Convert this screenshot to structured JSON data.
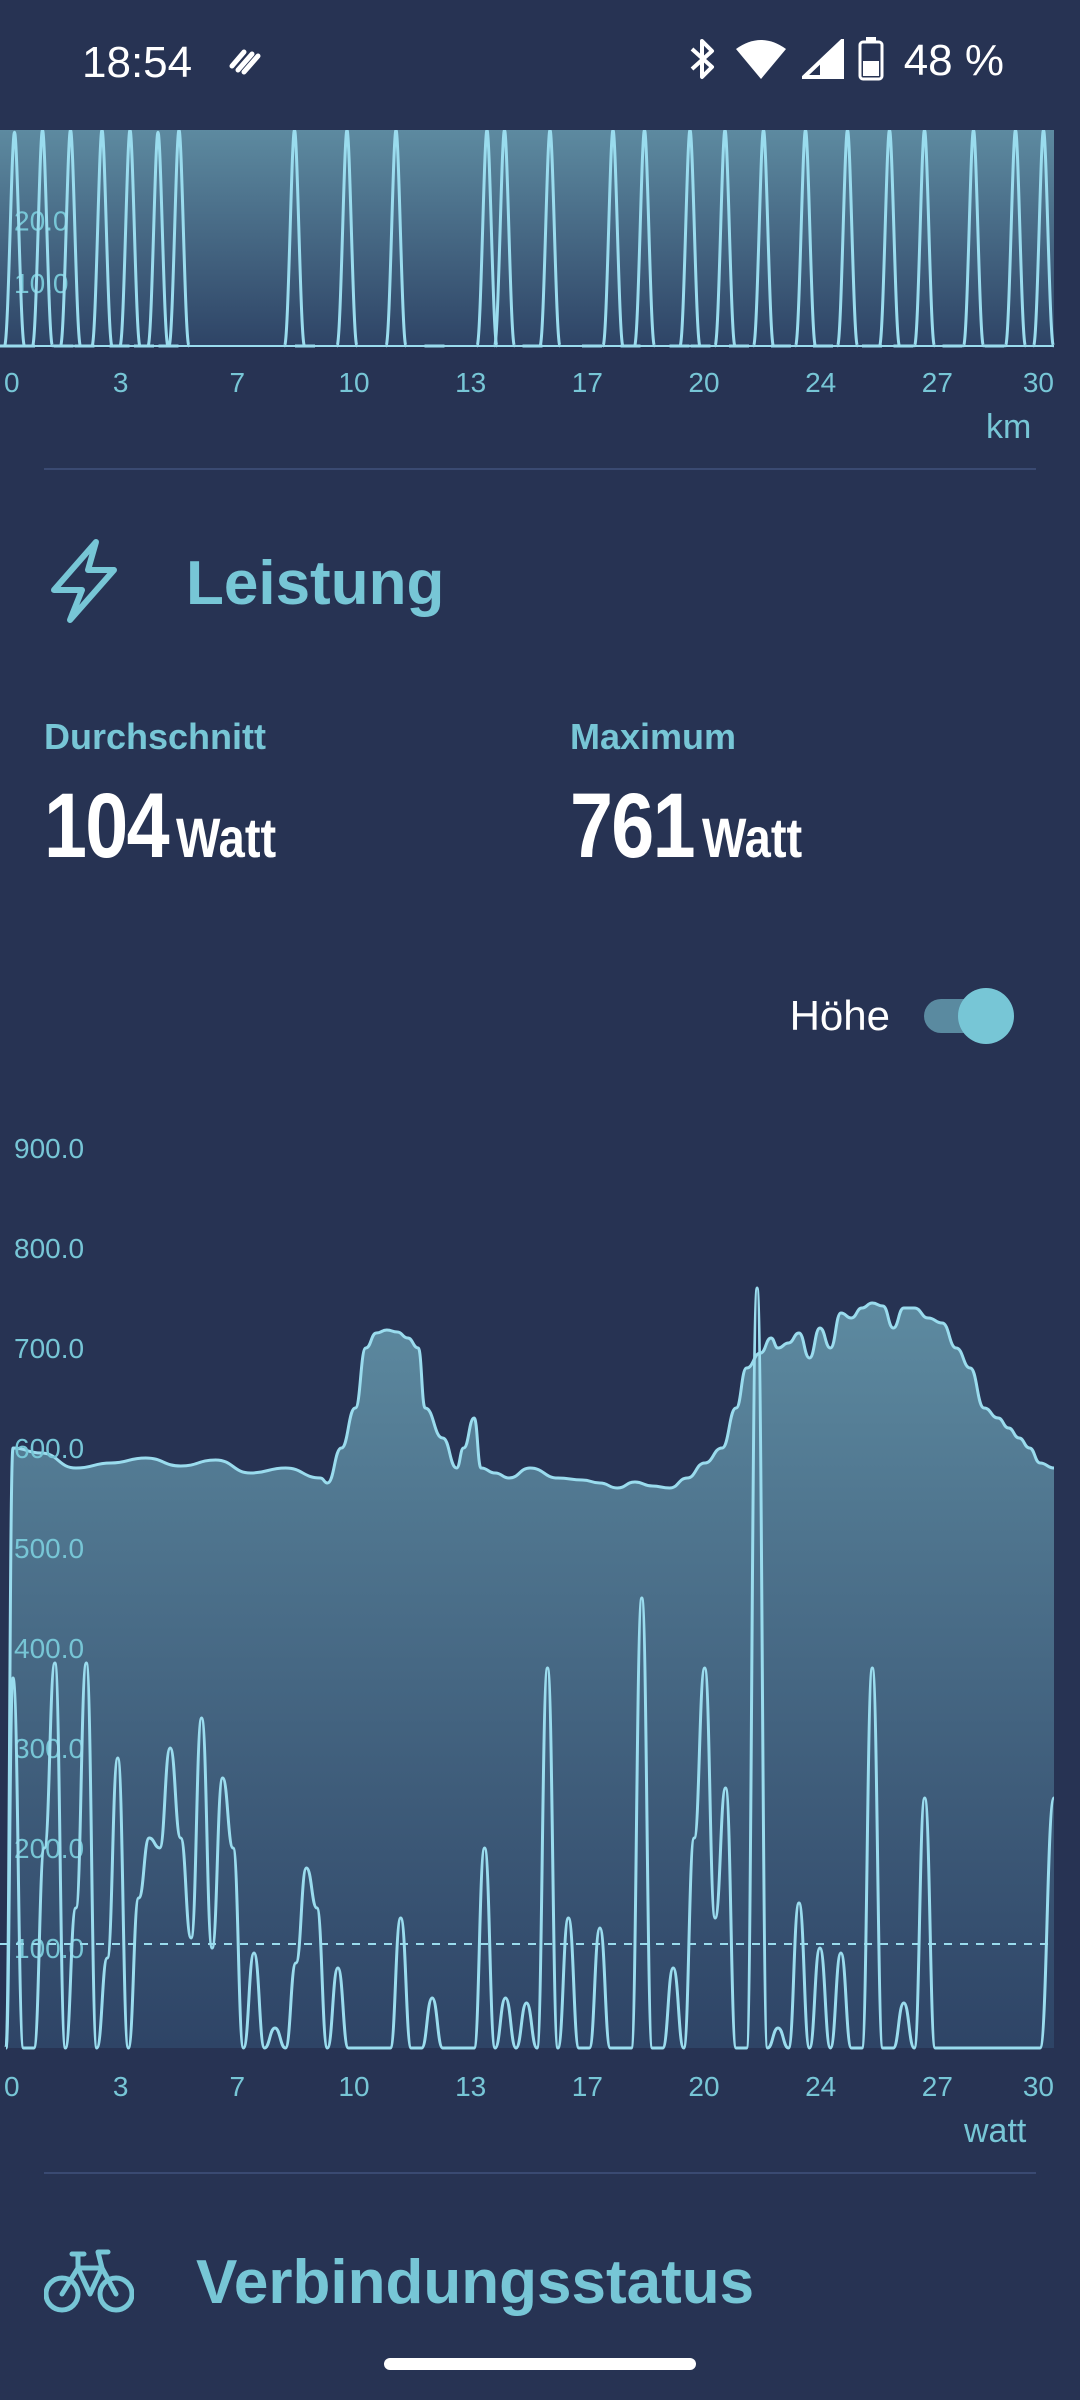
{
  "status_bar": {
    "time": "18:54",
    "battery_text": "48 %",
    "icons": [
      "notification-app-icon",
      "bluetooth-icon",
      "wifi-icon",
      "cell-signal-icon",
      "battery-icon"
    ]
  },
  "colors": {
    "background": "#273353",
    "accent": "#77c6d6",
    "line": "#9adcee",
    "fill_top": "#5d8aa0",
    "fill_bottom": "#2e4466"
  },
  "speed_section": {
    "unit": "km"
  },
  "power_section": {
    "icon": "lightning-icon",
    "title": "Leistung",
    "average": {
      "label": "Durchschnitt",
      "value": "104",
      "unit": "Watt"
    },
    "maximum": {
      "label": "Maximum",
      "value": "761",
      "unit": "Watt"
    },
    "toggle": {
      "label": "Höhe",
      "on": true
    },
    "unit": "watt"
  },
  "connection_section": {
    "icon": "bicycle-icon",
    "title": "Verbindungsstatus"
  },
  "chart_data": [
    {
      "type": "line",
      "x_ticks": [
        "0",
        "3",
        "7",
        "10",
        "13",
        "17",
        "20",
        "24",
        "27",
        "30"
      ],
      "y_ticks": [
        "10.0",
        "20.0"
      ],
      "xlabel": "km",
      "xlim": [
        0,
        30
      ],
      "series": [
        {
          "x": [
            0.1,
            0.3,
            0.6,
            1.1,
            1.7,
            1.9,
            2.3,
            2.8,
            3.3,
            3.6,
            4.0,
            4.4,
            4.7,
            5.0,
            8.3,
            8.6,
            9.8,
            11.2,
            12.3,
            13.8,
            14.3,
            15.1,
            15.6,
            16.8,
            17.4,
            17.9,
            18.3,
            19.3,
            19.6,
            19.9,
            20.6,
            21.0,
            21.7,
            22.2,
            22.9,
            23.4,
            24.1,
            24.8,
            25.3,
            25.7,
            26.3,
            27.1,
            27.7,
            28.3,
            28.9,
            29.7
          ],
          "values": [
            0,
            34,
            0,
            36,
            0,
            38,
            0,
            38,
            0,
            36,
            0,
            34,
            0,
            38,
            38,
            0,
            42,
            38,
            0,
            38,
            38,
            0,
            38,
            0,
            38,
            0,
            38,
            0,
            36,
            0,
            38,
            0,
            38,
            0,
            38,
            0,
            38,
            0,
            38,
            0,
            38,
            0,
            38,
            0,
            38,
            38
          ]
        }
      ]
    },
    {
      "type": "area",
      "x_ticks": [
        "0",
        "3",
        "7",
        "10",
        "13",
        "17",
        "20",
        "24",
        "27",
        "30"
      ],
      "y_ticks": [
        "100.0",
        "200.0",
        "300.0",
        "400.0",
        "500.0",
        "600.0",
        "700.0",
        "800.0",
        "900.0"
      ],
      "xlabel": "watt",
      "xlim": [
        0,
        30
      ],
      "ylim": [
        0,
        950
      ],
      "average_line": 104,
      "series": [
        {
          "name": "Höhe",
          "x": [
            0,
            0.2,
            1.0,
            2.0,
            3.0,
            4.0,
            5.0,
            6.0,
            7.0,
            8.0,
            9.0,
            9.2,
            9.6,
            10.0,
            10.3,
            10.6,
            10.9,
            11.2,
            11.5,
            11.8,
            12.0,
            12.5,
            12.9,
            13.1,
            13.4,
            13.6,
            14.0,
            14.4,
            15.0,
            15.8,
            16.5,
            17.0,
            17.5,
            18.0,
            18.5,
            19.0,
            19.5,
            20.0,
            20.5,
            20.9,
            21.2,
            21.6,
            21.9,
            22.1,
            22.4,
            22.7,
            23.0,
            23.3,
            23.6,
            23.9,
            24.2,
            24.5,
            24.8,
            25.1,
            25.4,
            25.7,
            26.0,
            26.4,
            26.8,
            27.2,
            27.6,
            28.0,
            28.4,
            28.7,
            29.0,
            29.3,
            29.6,
            30.0
          ],
          "values": [
            0,
            600,
            595,
            580,
            585,
            590,
            582,
            588,
            575,
            580,
            570,
            565,
            600,
            640,
            700,
            715,
            718,
            716,
            710,
            700,
            640,
            610,
            580,
            600,
            630,
            580,
            575,
            570,
            580,
            570,
            568,
            565,
            560,
            566,
            562,
            560,
            570,
            585,
            600,
            640,
            680,
            695,
            710,
            700,
            705,
            715,
            690,
            720,
            700,
            735,
            730,
            740,
            745,
            742,
            720,
            740,
            740,
            730,
            725,
            700,
            680,
            640,
            630,
            620,
            610,
            600,
            585,
            580
          ]
        },
        {
          "name": "Leistung",
          "x": [
            0,
            0.2,
            0.5,
            0.8,
            1.1,
            1.4,
            1.7,
            2.0,
            2.3,
            2.6,
            2.9,
            3.2,
            3.5,
            3.8,
            4.1,
            4.4,
            4.7,
            5.0,
            5.3,
            5.6,
            5.9,
            6.2,
            6.5,
            6.8,
            7.1,
            7.4,
            7.7,
            8.0,
            8.3,
            8.6,
            8.9,
            9.2,
            9.5,
            9.8,
            10.1,
            10.4,
            10.7,
            11.0,
            11.3,
            11.6,
            11.9,
            12.2,
            12.5,
            12.8,
            13.1,
            13.4,
            13.7,
            14.0,
            14.3,
            14.6,
            14.9,
            15.2,
            15.5,
            15.8,
            16.1,
            16.4,
            16.7,
            17.0,
            17.3,
            17.6,
            17.9,
            18.2,
            18.5,
            18.8,
            19.1,
            19.4,
            19.7,
            20.0,
            20.3,
            20.6,
            20.9,
            21.2,
            21.5,
            21.8,
            22.1,
            22.4,
            22.7,
            23.0,
            23.3,
            23.6,
            23.9,
            24.2,
            24.5,
            24.8,
            25.1,
            25.4,
            25.7,
            26.0,
            26.3,
            26.6,
            26.9,
            27.2,
            27.5,
            27.8,
            28.1,
            28.4,
            28.7,
            29.0,
            29.3,
            29.6,
            30.0
          ],
          "values": [
            0,
            370,
            0,
            0,
            200,
            385,
            0,
            140,
            385,
            0,
            90,
            290,
            0,
            150,
            210,
            200,
            300,
            210,
            110,
            330,
            100,
            270,
            200,
            0,
            95,
            0,
            20,
            0,
            85,
            180,
            140,
            0,
            80,
            0,
            0,
            0,
            0,
            0,
            130,
            0,
            0,
            50,
            0,
            0,
            0,
            0,
            200,
            0,
            50,
            0,
            45,
            0,
            380,
            0,
            130,
            0,
            0,
            120,
            0,
            0,
            0,
            450,
            0,
            0,
            80,
            0,
            210,
            380,
            130,
            260,
            0,
            0,
            760,
            0,
            20,
            0,
            145,
            0,
            100,
            0,
            95,
            0,
            0,
            380,
            0,
            0,
            45,
            0,
            250,
            0,
            0,
            0,
            0,
            0,
            0,
            0,
            0,
            0,
            0,
            0,
            250
          ]
        }
      ]
    }
  ]
}
